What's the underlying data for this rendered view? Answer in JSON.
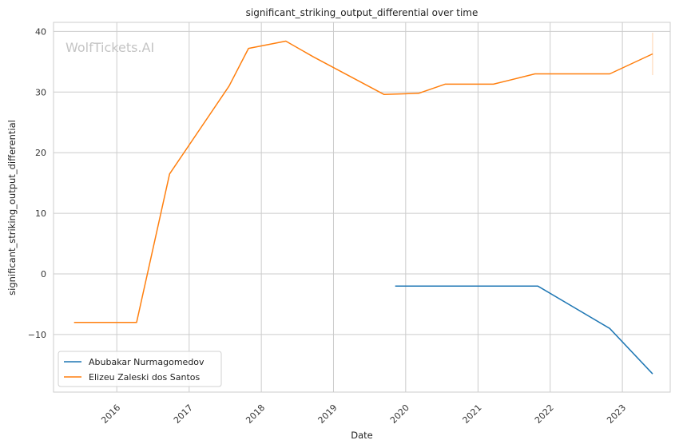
{
  "chart_data": {
    "type": "line",
    "title": "significant_striking_output_differential over time",
    "xlabel": "Date",
    "ylabel": "significant_striking_output_differential",
    "x_ticks": [
      "2016",
      "2017",
      "2018",
      "2019",
      "2020",
      "2021",
      "2022",
      "2023"
    ],
    "y_ticks": [
      -10,
      0,
      10,
      20,
      30,
      40
    ],
    "ylim": [
      -19.5,
      41.5
    ],
    "xlim": [
      "2015-02-15",
      "2023-08-31"
    ],
    "grid": true,
    "legend_position": "lower-left",
    "watermark": "WolfTickets.AI",
    "series": [
      {
        "name": "Abubakar Nurmagomedov",
        "color": "#1f77b4",
        "points": [
          {
            "x": "2019-11-09",
            "y": -2.0
          },
          {
            "x": "2021-10-30",
            "y": -2.0
          },
          {
            "x": "2022-10-29",
            "y": -9.0
          },
          {
            "x": "2023-06-03",
            "y": -16.5
          }
        ]
      },
      {
        "name": "Elizeu Zaleski dos Santos",
        "color": "#ff7f0e",
        "points": [
          {
            "x": "2015-05-30",
            "y": -8.0
          },
          {
            "x": "2016-04-10",
            "y": -8.0
          },
          {
            "x": "2016-09-24",
            "y": 16.5
          },
          {
            "x": "2017-07-22",
            "y": 31.0
          },
          {
            "x": "2017-10-28",
            "y": 37.2
          },
          {
            "x": "2018-05-05",
            "y": 38.4
          },
          {
            "x": "2018-09-22",
            "y": 35.8
          },
          {
            "x": "2019-09-14",
            "y": 29.6
          },
          {
            "x": "2020-03-07",
            "y": 29.8
          },
          {
            "x": "2020-07-18",
            "y": 31.3
          },
          {
            "x": "2021-03-20",
            "y": 31.3
          },
          {
            "x": "2021-10-16",
            "y": 33.0
          },
          {
            "x": "2022-10-29",
            "y": 33.0
          },
          {
            "x": "2023-06-03",
            "y": 36.3
          }
        ]
      }
    ]
  }
}
